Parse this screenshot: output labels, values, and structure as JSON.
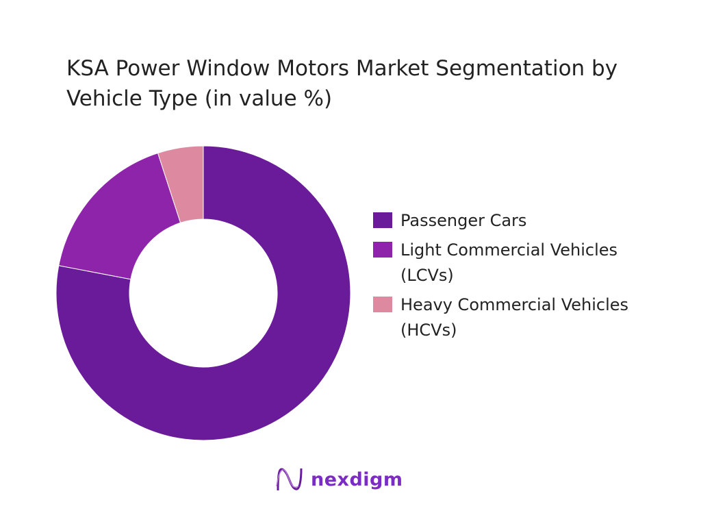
{
  "chart_data": {
    "type": "pie",
    "variant": "donut",
    "title": "KSA Power Window Motors Market Segmentation by Vehicle Type (in value %)",
    "categories": [
      "Passenger Cars",
      "Light Commercial Vehicles (LCVs)",
      "Heavy Commercial Vehicles (HCVs)"
    ],
    "values": [
      78,
      17,
      5
    ],
    "colors": [
      "#6a1b9a",
      "#8e24aa",
      "#dd8aa0"
    ],
    "legend_placement": "right",
    "start_angle": "top",
    "direction": "clockwise"
  },
  "brand": {
    "name": "nexdigm",
    "color": "#7b2cc4"
  }
}
